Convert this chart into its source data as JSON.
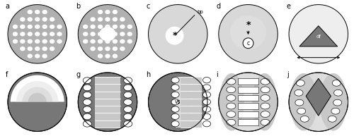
{
  "background": "#ffffff",
  "gray_dark": "#777777",
  "gray_med": "#999999",
  "gray_body": "#b0b0b0",
  "gray_light": "#c8c8c8",
  "gray_lighter": "#dedede",
  "gray_lightest": "#eeeeee",
  "gray_disc": "#d8d8d8",
  "white": "#ffffff",
  "black": "#000000",
  "label_fontsize": 7,
  "panel_labels": [
    "a",
    "b",
    "c",
    "d",
    "e",
    "f",
    "g",
    "h",
    "i",
    "j"
  ]
}
